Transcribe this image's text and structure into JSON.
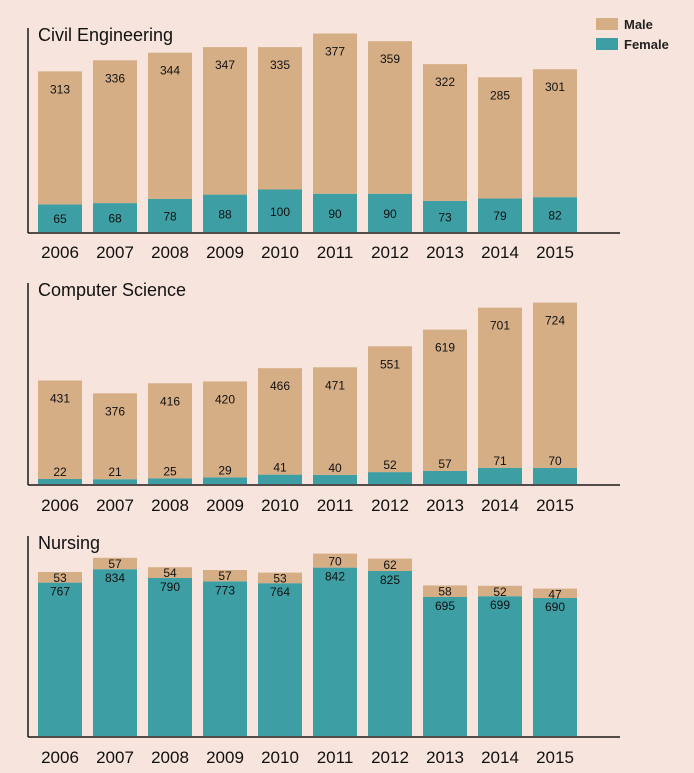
{
  "colors": {
    "male": "#d5ae86",
    "female": "#3d9ea4",
    "background": "#f7e4dc",
    "axis": "#1a1a1a",
    "text": "#111111"
  },
  "legend": {
    "male_label": "Male",
    "female_label": "Female"
  },
  "chart_data": [
    {
      "type": "bar",
      "stacked": true,
      "title": "Civil Engineering",
      "categories": [
        "2006",
        "2007",
        "2008",
        "2009",
        "2010",
        "2011",
        "2012",
        "2013",
        "2014",
        "2015"
      ],
      "series": [
        {
          "name": "Female",
          "values": [
            65,
            68,
            78,
            88,
            100,
            90,
            90,
            73,
            79,
            82
          ]
        },
        {
          "name": "Male",
          "values": [
            313,
            336,
            344,
            347,
            335,
            377,
            359,
            322,
            285,
            301
          ]
        }
      ],
      "ylim": [
        0,
        480
      ],
      "xlabel": "",
      "ylabel": "",
      "legend": "top-right"
    },
    {
      "type": "bar",
      "stacked": true,
      "title": "Computer Science",
      "categories": [
        "2006",
        "2007",
        "2008",
        "2009",
        "2010",
        "2011",
        "2012",
        "2013",
        "2014",
        "2015"
      ],
      "series": [
        {
          "name": "Female",
          "values": [
            22,
            21,
            25,
            29,
            41,
            40,
            52,
            57,
            71,
            70
          ]
        },
        {
          "name": "Male",
          "values": [
            431,
            376,
            416,
            420,
            466,
            471,
            551,
            619,
            701,
            724
          ]
        }
      ],
      "ylim": [
        0,
        880
      ],
      "xlabel": "",
      "ylabel": ""
    },
    {
      "type": "bar",
      "stacked": true,
      "title": "Nursing",
      "categories": [
        "2006",
        "2007",
        "2008",
        "2009",
        "2010",
        "2011",
        "2012",
        "2013",
        "2014",
        "2015"
      ],
      "series": [
        {
          "name": "Female",
          "values": [
            767,
            834,
            790,
            773,
            764,
            842,
            825,
            695,
            699,
            690
          ]
        },
        {
          "name": "Male",
          "values": [
            53,
            57,
            54,
            57,
            53,
            70,
            62,
            58,
            52,
            47
          ]
        }
      ],
      "ylim": [
        0,
        1000
      ],
      "xlabel": "",
      "ylabel": ""
    }
  ]
}
